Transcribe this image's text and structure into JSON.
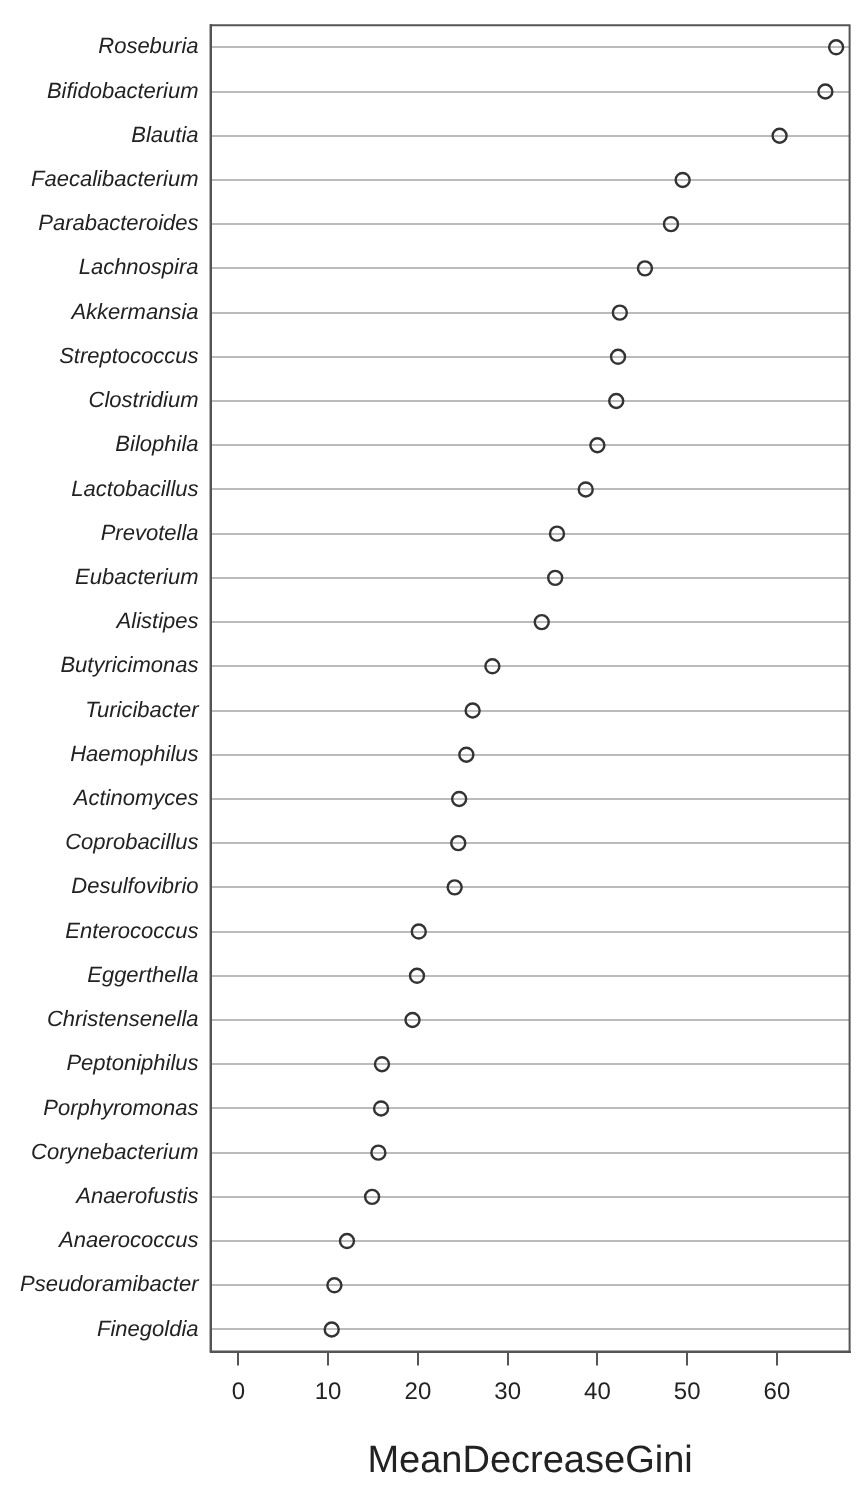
{
  "chart_data": {
    "type": "scatter",
    "orientation": "horizontal",
    "xlabel": "MeanDecreaseGini",
    "categories": [
      "Roseburia",
      "Bifidobacterium",
      "Blautia",
      "Faecalibacterium",
      "Parabacteroides",
      "Lachnospira",
      "Akkermansia",
      "Streptococcus",
      "Clostridium",
      "Bilophila",
      "Lactobacillus",
      "Prevotella",
      "Eubacterium",
      "Alistipes",
      "Butyricimonas",
      "Turicibacter",
      "Haemophilus",
      "Actinomyces",
      "Coprobacillus",
      "Desulfovibrio",
      "Enterococcus",
      "Eggerthella",
      "Christensenella",
      "Peptoniphilus",
      "Porphyromonas",
      "Corynebacterium",
      "Anaerofustis",
      "Anaerococcus",
      "Pseudoramibacter",
      "Finegoldia"
    ],
    "values": [
      66.6,
      65.4,
      60.3,
      49.5,
      48.2,
      45.3,
      42.5,
      42.3,
      42.1,
      40.0,
      38.7,
      35.5,
      35.3,
      33.8,
      28.3,
      26.1,
      25.4,
      24.6,
      24.5,
      24.1,
      20.1,
      19.9,
      19.4,
      16.0,
      15.9,
      15.6,
      14.9,
      12.1,
      10.7,
      10.4
    ],
    "color": "#333333",
    "marker": "circle",
    "grid": "y",
    "xlim": [
      -3.1,
      68.1
    ],
    "xticks": [
      0,
      10,
      20,
      30,
      40,
      50,
      60
    ]
  }
}
